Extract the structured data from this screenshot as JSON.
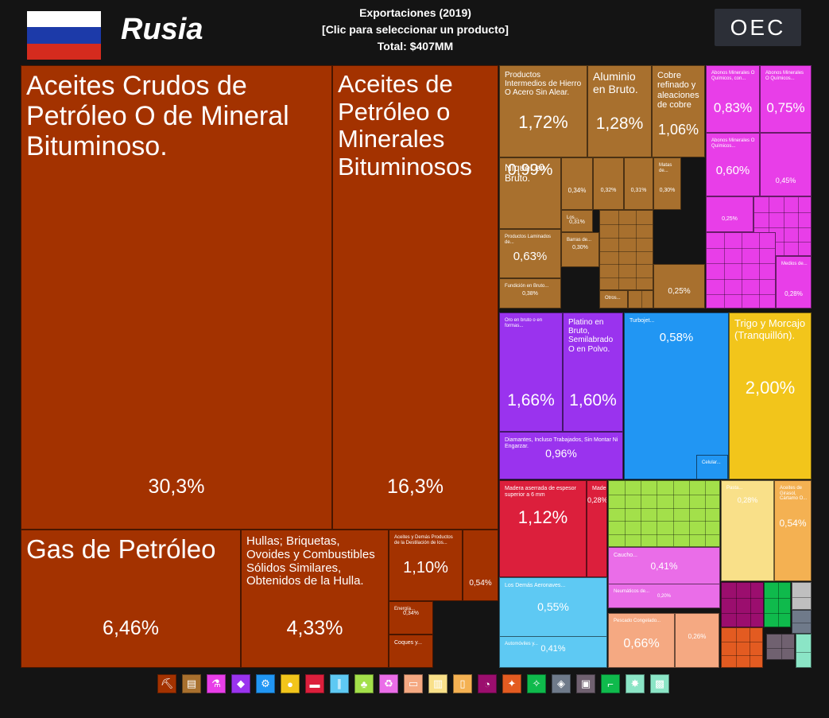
{
  "header": {
    "country": "Rusia",
    "title": "Exportaciones (2019)",
    "subtitle": "[Clic para seleccionar un producto]",
    "total": "Total: $407MM",
    "logo": "OEC"
  },
  "flag_colors": [
    "#ffffff",
    "#1c3aa9",
    "#d52b1e"
  ],
  "colors": {
    "minerals": "#a33200",
    "metals": "#a8702e",
    "chemicals": "#e83ee8",
    "precious": "#9a33ee",
    "machines": "#2196f3",
    "vegetable": "#f2c51b",
    "wood": "#dc1f3c",
    "plastics": "#a3e04a",
    "animal_hides": "#f9e089",
    "paper": "#f4b152",
    "chemicals_light": "#ea6de8",
    "transport": "#5ec9f3",
    "animals": "#f5a982",
    "foodstuffs": "#9b0e6e",
    "instruments": "#e35b21",
    "misc": "#706170",
    "textiles": "#8be5c6",
    "arms": "#6f7a8a",
    "footwear": "#0fba4c",
    "stone": "#bfbfbf"
  },
  "chart_data": {
    "type": "treemap",
    "title": "Exportaciones (2019)",
    "total": "$407MM",
    "items": [
      {
        "name": "Aceites Crudos de Petróleo O de Mineral Bituminoso.",
        "share": 30.3,
        "label": "30,3%",
        "group": "minerals"
      },
      {
        "name": "Aceites de Petróleo o Minerales Bituminosos",
        "share": 16.3,
        "label": "16,3%",
        "group": "minerals"
      },
      {
        "name": "Gas de Petróleo",
        "share": 6.46,
        "label": "6,46%",
        "group": "minerals"
      },
      {
        "name": "Hullas; Briquetas, Ovoides y Combustibles Sólidos Similares, Obtenidos de la Hulla.",
        "share": 4.33,
        "label": "4,33%",
        "group": "minerals"
      },
      {
        "name": "Aceites y Demás Productos de la Destilación de los...",
        "share": 1.1,
        "label": "1,10%",
        "group": "minerals"
      },
      {
        "name": "",
        "share": 0.54,
        "label": "0,54%",
        "group": "minerals"
      },
      {
        "name": "Energía...",
        "share": 0.34,
        "label": "0,34%",
        "group": "minerals"
      },
      {
        "name": "Coques y...",
        "share": null,
        "label": "",
        "group": "minerals"
      },
      {
        "name": "Productos Intermedios de Hierro O Acero Sin Alear.",
        "share": 1.72,
        "label": "1,72%",
        "group": "metals"
      },
      {
        "name": "Aluminio en Bruto.",
        "share": 1.28,
        "label": "1,28%",
        "group": "metals"
      },
      {
        "name": "Cobre refinado y aleaciones de cobre",
        "share": 1.06,
        "label": "1,06%",
        "group": "metals"
      },
      {
        "name": "Níquel en Bruto.",
        "share": 0.99,
        "label": "0,99%",
        "group": "metals"
      },
      {
        "name": "",
        "share": 0.34,
        "label": "0,34%",
        "group": "metals"
      },
      {
        "name": "",
        "share": 0.32,
        "label": "0,32%",
        "group": "metals"
      },
      {
        "name": "",
        "share": 0.31,
        "label": "0,31%",
        "group": "metals"
      },
      {
        "name": "Matas de...",
        "share": 0.3,
        "label": "0,30%",
        "group": "metals"
      },
      {
        "name": "Los...",
        "share": 0.31,
        "label": "0,31%",
        "group": "metals"
      },
      {
        "name": "Productos Laminados de...",
        "share": 0.63,
        "label": "0,63%",
        "group": "metals"
      },
      {
        "name": "Barras de...",
        "share": 0.3,
        "label": "0,30%",
        "group": "metals"
      },
      {
        "name": "Fundición en Bruto...",
        "share": 0.38,
        "label": "0,38%",
        "group": "metals"
      },
      {
        "name": "Otros...",
        "share": null,
        "label": "",
        "group": "metals"
      },
      {
        "name": "",
        "share": 0.25,
        "label": "0,25%",
        "group": "metals"
      },
      {
        "name": "Abonos Minerales O Químicos, con...",
        "share": 0.83,
        "label": "0,83%",
        "group": "chemicals"
      },
      {
        "name": "Abonos Minerales O Químicos...",
        "share": 0.75,
        "label": "0,75%",
        "group": "chemicals"
      },
      {
        "name": "Abonos Minerales O Químicos...",
        "share": 0.6,
        "label": "0,60%",
        "group": "chemicals"
      },
      {
        "name": "",
        "share": 0.45,
        "label": "0,45%",
        "group": "chemicals"
      },
      {
        "name": "",
        "share": 0.25,
        "label": "0,25%",
        "group": "chemicals"
      },
      {
        "name": "Medios de...",
        "share": 0.28,
        "label": "0,28%",
        "group": "chemicals"
      },
      {
        "name": "Oro en bruto o en formas...",
        "share": 1.66,
        "label": "1,66%",
        "group": "precious"
      },
      {
        "name": "Platino en Bruto, Semilabrado O en Polvo.",
        "share": 1.6,
        "label": "1,60%",
        "group": "precious"
      },
      {
        "name": "Diamantes, Incluso Trabajados, Sin Montar Ni Engarzar.",
        "share": 0.96,
        "label": "0,96%",
        "group": "precious"
      },
      {
        "name": "Turbojet...",
        "share": 0.58,
        "label": "0,58%",
        "group": "machines"
      },
      {
        "name": "Celular...",
        "share": null,
        "label": "",
        "group": "machines"
      },
      {
        "name": "Trigo y Morcajo (Tranquillón).",
        "share": 2.0,
        "label": "2,00%",
        "group": "vegetable"
      },
      {
        "name": "Madera aserrada de espesor superior a 6 mm",
        "share": 1.12,
        "label": "1,12%",
        "group": "wood"
      },
      {
        "name": "Madera...",
        "share": 0.28,
        "label": "0,28%",
        "group": "wood"
      },
      {
        "name": "Caucho...",
        "share": 0.41,
        "label": "0,41%",
        "group": "chemicals_light"
      },
      {
        "name": "Neumáticos de...",
        "share": 0.2,
        "label": "0,20%",
        "group": "chemicals_light"
      },
      {
        "name": "Pasta...",
        "share": 0.28,
        "label": "0,28%",
        "group": "animal_hides"
      },
      {
        "name": "Aceites de Girasol, Cártamo O...",
        "share": 0.54,
        "label": "0,54%",
        "group": "paper"
      },
      {
        "name": "Los Demás Aeronaves...",
        "share": 0.55,
        "label": "0,55%",
        "group": "transport"
      },
      {
        "name": "Automóviles y...",
        "share": 0.41,
        "label": "0,41%",
        "group": "transport"
      },
      {
        "name": "Pescado Congelado...",
        "share": 0.66,
        "label": "0,66%",
        "group": "animals"
      },
      {
        "name": "",
        "share": 0.26,
        "label": "0,26%",
        "group": "animals"
      }
    ],
    "legend": [
      "minerals",
      "metals",
      "chemicals",
      "precious",
      "machines",
      "vegetable",
      "wood",
      "plastics",
      "chemicals_light",
      "animal_hides",
      "paper",
      "transport",
      "animals",
      "foodstuffs",
      "instruments",
      "misc",
      "textiles",
      "arms",
      "footwear",
      "stone"
    ]
  },
  "legend_icons": [
    {
      "name": "minerals",
      "glyph": "⛏",
      "color": "#a33200"
    },
    {
      "name": "metals",
      "glyph": "▤",
      "color": "#a8702e"
    },
    {
      "name": "chemicals",
      "glyph": "⚗",
      "color": "#e83ee8"
    },
    {
      "name": "precious",
      "glyph": "◆",
      "color": "#9a33ee"
    },
    {
      "name": "machines",
      "glyph": "⚙",
      "color": "#2196f3"
    },
    {
      "name": "vegetable",
      "glyph": "●",
      "color": "#f2c51b"
    },
    {
      "name": "wood",
      "glyph": "▬",
      "color": "#dc1f3c"
    },
    {
      "name": "transport",
      "glyph": "∥",
      "color": "#5ec9f3"
    },
    {
      "name": "plastics",
      "glyph": "♣",
      "color": "#a3e04a"
    },
    {
      "name": "chemicals_light",
      "glyph": "♻",
      "color": "#ea6de8"
    },
    {
      "name": "animals",
      "glyph": "▭",
      "color": "#f5a982"
    },
    {
      "name": "animal_hides",
      "glyph": "▥",
      "color": "#f9e089"
    },
    {
      "name": "paper",
      "glyph": "▯",
      "color": "#f4b152"
    },
    {
      "name": "foodstuffs",
      "glyph": "◔",
      "color": "#9b0e6e"
    },
    {
      "name": "instruments",
      "glyph": "✦",
      "color": "#e35b21"
    },
    {
      "name": "textiles",
      "glyph": "✧",
      "color": "#0fba4c"
    },
    {
      "name": "arms",
      "glyph": "◈",
      "color": "#6f7a8a"
    },
    {
      "name": "misc",
      "glyph": "▣",
      "color": "#706170"
    },
    {
      "name": "footwear",
      "glyph": "⌐",
      "color": "#0fba4c"
    },
    {
      "name": "stone",
      "glyph": "✸",
      "color": "#8be5c6"
    },
    {
      "name": "textiles_light",
      "glyph": "▩",
      "color": "#8be5c6"
    }
  ]
}
